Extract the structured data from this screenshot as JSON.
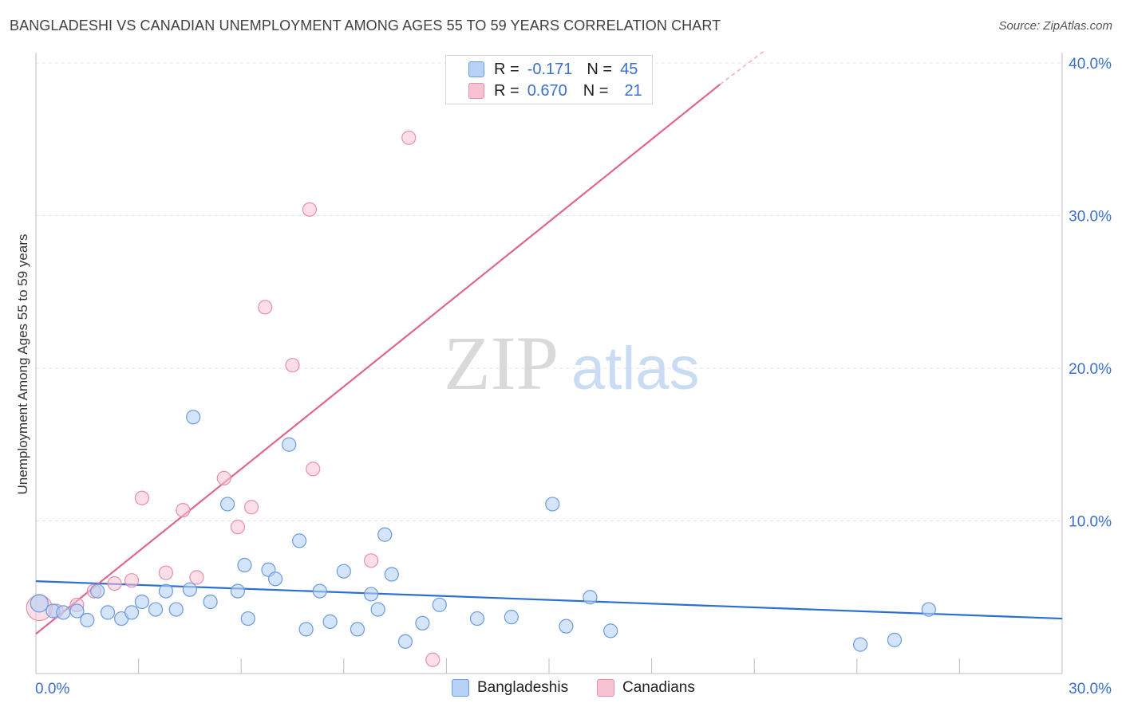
{
  "title": "BANGLADESHI VS CANADIAN UNEMPLOYMENT AMONG AGES 55 TO 59 YEARS CORRELATION CHART",
  "source": "Source: ZipAtlas.com",
  "watermark": {
    "zip": "ZIP",
    "atlas": "atlas"
  },
  "colors": {
    "blue_fill": "#b8d2f5",
    "blue_stroke": "#6b9be0",
    "blue_line": "#2a6fd1",
    "pink_fill": "#f7c3d2",
    "pink_stroke": "#e890ab",
    "pink_line": "#e0668f",
    "grid": "#e4e4e7",
    "tick_text": "#3b6fcf"
  },
  "legend": {
    "rows": [
      {
        "r_label": "R =",
        "r_value": "-0.171",
        "n_label": "N =",
        "n_value": "45",
        "color": "#b8d2f5",
        "stroke": "#6b9be0"
      },
      {
        "r_label": "R =",
        "r_value": "0.670",
        "n_label": "N =",
        "n_value": "21",
        "color": "#f7c3d2",
        "stroke": "#e890ab"
      }
    ]
  },
  "bottom_legend": [
    {
      "label": "Bangladeshis",
      "color": "#b8d2f5",
      "stroke": "#6b9be0"
    },
    {
      "label": "Canadians",
      "color": "#f7c3d2",
      "stroke": "#e890ab"
    }
  ],
  "chart_data": {
    "type": "scatter",
    "title": "BANGLADESHI VS CANADIAN UNEMPLOYMENT AMONG AGES 55 TO 59 YEARS CORRELATION CHART",
    "xlabel": "",
    "ylabel": "Unemployment Among Ages 55 to 59 years",
    "xlim": [
      0,
      30
    ],
    "ylim": [
      0,
      40
    ],
    "x_tick_labels": [
      {
        "value": 0,
        "label": "0.0%"
      },
      {
        "value": 30,
        "label": "30.0%"
      }
    ],
    "y_tick_labels": [
      {
        "value": 10,
        "label": "10.0%"
      },
      {
        "value": 20,
        "label": "20.0%"
      },
      {
        "value": 30,
        "label": "30.0%"
      },
      {
        "value": 40,
        "label": "40.0%"
      }
    ],
    "grid": true,
    "legend_position": "top-center",
    "series": [
      {
        "name": "Bangladeshis",
        "points": [
          [
            0.1,
            4.6
          ],
          [
            0.5,
            4.1
          ],
          [
            0.8,
            4.0
          ],
          [
            1.2,
            4.1
          ],
          [
            1.5,
            3.5
          ],
          [
            1.8,
            5.4
          ],
          [
            2.1,
            4.0
          ],
          [
            2.5,
            3.6
          ],
          [
            2.8,
            4.0
          ],
          [
            3.1,
            4.7
          ],
          [
            3.5,
            4.2
          ],
          [
            3.8,
            5.4
          ],
          [
            4.1,
            4.2
          ],
          [
            4.5,
            5.5
          ],
          [
            4.6,
            16.8
          ],
          [
            5.1,
            4.7
          ],
          [
            5.6,
            11.1
          ],
          [
            5.9,
            5.4
          ],
          [
            6.2,
            3.6
          ],
          [
            6.1,
            7.1
          ],
          [
            6.8,
            6.8
          ],
          [
            7.0,
            6.2
          ],
          [
            7.4,
            15.0
          ],
          [
            7.7,
            8.7
          ],
          [
            7.9,
            2.9
          ],
          [
            8.3,
            5.4
          ],
          [
            8.6,
            3.4
          ],
          [
            9.0,
            6.7
          ],
          [
            9.4,
            2.9
          ],
          [
            9.8,
            5.2
          ],
          [
            10.0,
            4.2
          ],
          [
            10.4,
            6.5
          ],
          [
            10.2,
            9.1
          ],
          [
            10.8,
            2.1
          ],
          [
            11.3,
            3.3
          ],
          [
            11.8,
            4.5
          ],
          [
            12.9,
            3.6
          ],
          [
            13.9,
            3.7
          ],
          [
            15.1,
            11.1
          ],
          [
            15.5,
            3.1
          ],
          [
            16.2,
            5.0
          ],
          [
            16.8,
            2.8
          ],
          [
            24.1,
            1.9
          ],
          [
            25.1,
            2.2
          ],
          [
            26.1,
            4.2
          ]
        ]
      },
      {
        "name": "Canadians",
        "points": [
          [
            0.1,
            4.3
          ],
          [
            0.6,
            4.1
          ],
          [
            1.2,
            4.5
          ],
          [
            1.7,
            5.4
          ],
          [
            2.3,
            5.9
          ],
          [
            2.8,
            6.1
          ],
          [
            3.1,
            11.5
          ],
          [
            3.8,
            6.6
          ],
          [
            4.3,
            10.7
          ],
          [
            4.7,
            6.3
          ],
          [
            5.5,
            12.8
          ],
          [
            6.3,
            10.9
          ],
          [
            5.9,
            9.6
          ],
          [
            6.7,
            24.0
          ],
          [
            7.5,
            20.2
          ],
          [
            8.0,
            30.4
          ],
          [
            8.1,
            13.4
          ],
          [
            9.8,
            7.4
          ],
          [
            10.9,
            35.1
          ],
          [
            11.6,
            0.9
          ],
          [
            16.3,
            39.4
          ]
        ]
      }
    ],
    "trend_lines": [
      {
        "name": "Bangladeshis",
        "x": [
          0,
          30
        ],
        "y": [
          6.05,
          3.6
        ]
      },
      {
        "name": "Canadians",
        "x": [
          0,
          20.0
        ],
        "y": [
          2.6,
          38.6
        ],
        "dashed_extension_to": [
          21.3,
          40.8
        ]
      }
    ]
  }
}
